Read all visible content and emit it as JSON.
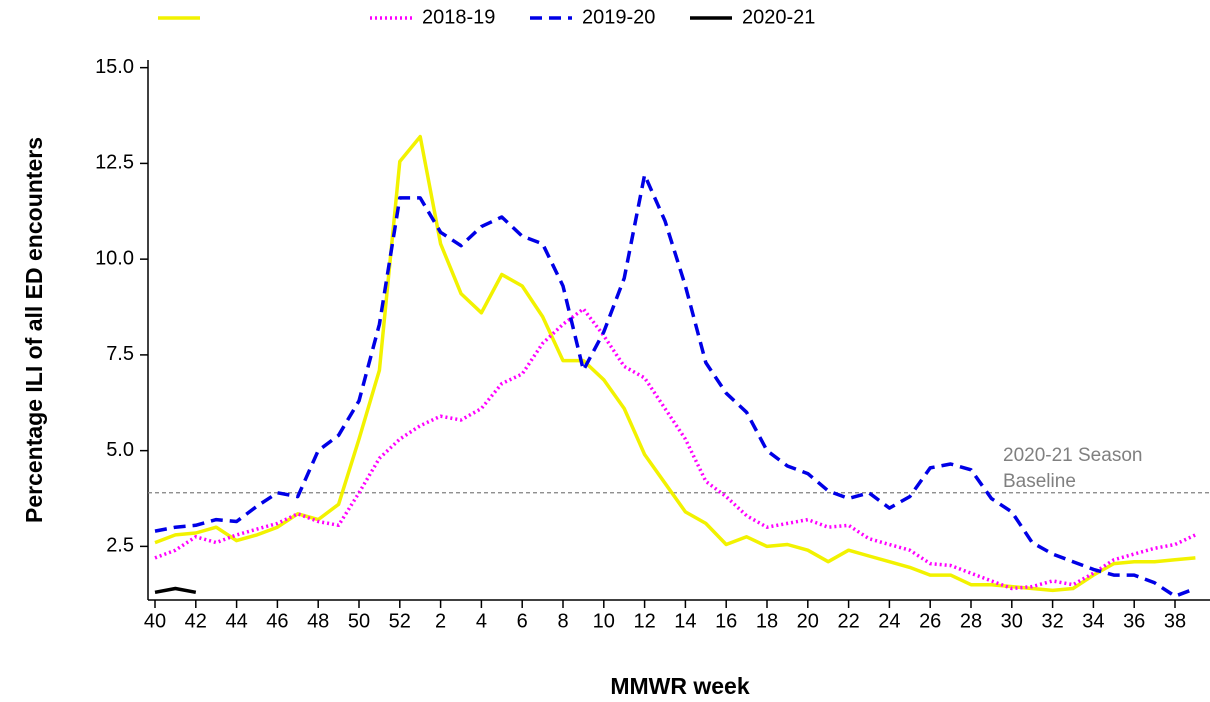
{
  "chart_data": {
    "type": "line",
    "y_label": "Percentage ILI of all ED encounters",
    "x_label": "MMWR week",
    "categories": [
      40,
      null,
      42,
      null,
      44,
      null,
      46,
      null,
      48,
      null,
      50,
      null,
      52,
      null,
      2,
      null,
      4,
      null,
      6,
      null,
      8,
      null,
      10,
      null,
      12,
      null,
      14,
      null,
      16,
      null,
      18,
      null,
      20,
      null,
      22,
      null,
      24,
      null,
      26,
      null,
      28,
      null,
      30,
      null,
      32,
      null,
      34,
      null,
      36,
      null,
      38,
      null
    ],
    "series": [
      {
        "color": "#f2f200",
        "style": "solid",
        "values": [
          2.6,
          2.8,
          2.85,
          3.0,
          2.65,
          2.8,
          3.0,
          3.35,
          3.2,
          3.6,
          5.3,
          7.1,
          12.55,
          13.2,
          10.4,
          9.1,
          8.6,
          9.6,
          9.3,
          8.5,
          7.35,
          7.35,
          6.85,
          6.1,
          4.9,
          4.15,
          3.4,
          3.1,
          2.55,
          2.75,
          2.5,
          2.55,
          2.4,
          2.1,
          2.4,
          2.25,
          2.1,
          1.95,
          1.75,
          1.75,
          1.5,
          1.5,
          1.45,
          1.4,
          1.35,
          1.4,
          1.75,
          2.05,
          2.1,
          2.1,
          2.15,
          2.2
        ]
      },
      {
        "name": "2018-19",
        "color": "#ff00ff",
        "style": "dotted",
        "values": [
          2.2,
          2.4,
          2.75,
          2.6,
          2.8,
          2.95,
          3.1,
          3.35,
          3.15,
          3.05,
          3.9,
          4.8,
          5.3,
          5.65,
          5.9,
          5.8,
          6.1,
          6.75,
          7.0,
          7.8,
          8.3,
          8.7,
          8.0,
          7.2,
          6.9,
          6.1,
          5.3,
          4.2,
          3.8,
          3.3,
          3.0,
          3.1,
          3.2,
          3.0,
          3.05,
          2.7,
          2.55,
          2.4,
          2.05,
          2.0,
          1.8,
          1.6,
          1.4,
          1.45,
          1.6,
          1.5,
          1.8,
          2.15,
          2.3,
          2.45,
          2.55,
          2.8
        ]
      },
      {
        "name": "2019-20",
        "color": "#0000e6",
        "style": "dashed",
        "values": [
          2.9,
          3.0,
          3.05,
          3.2,
          3.15,
          3.55,
          3.9,
          3.8,
          5.0,
          5.4,
          6.3,
          8.3,
          11.6,
          11.6,
          10.7,
          10.35,
          10.85,
          11.1,
          10.6,
          10.4,
          9.3,
          7.1,
          8.1,
          9.5,
          12.2,
          11.0,
          9.3,
          7.3,
          6.5,
          6.0,
          5.0,
          4.6,
          4.4,
          3.95,
          3.75,
          3.9,
          3.5,
          3.8,
          4.55,
          4.65,
          4.5,
          3.75,
          3.4,
          2.6,
          2.3,
          2.1,
          1.9,
          1.75,
          1.75,
          1.55,
          1.2,
          1.4
        ]
      },
      {
        "name": "2020-21",
        "color": "#000000",
        "style": "solid",
        "values": [
          1.3,
          1.4,
          1.3,
          null,
          null,
          null,
          null,
          null,
          null,
          null,
          null,
          null,
          null,
          null,
          null,
          null,
          null,
          null,
          null,
          null,
          null,
          null,
          null,
          null,
          null,
          null,
          null,
          null,
          null,
          null,
          null,
          null,
          null,
          null,
          null,
          null,
          null,
          null,
          null,
          null,
          null,
          null,
          null,
          null,
          null,
          null,
          null,
          null,
          null,
          null,
          null,
          null
        ]
      }
    ],
    "baseline": {
      "value": 3.9,
      "label": [
        "2020-21 Season",
        "Baseline"
      ],
      "color": "#808080"
    },
    "ylim": [
      1.1,
      15.2
    ],
    "yticks": [
      2.5,
      {
        "value": 5,
        "label": "5.0"
      },
      7.5,
      {
        "value": 10,
        "label": "10.0"
      },
      12.5,
      {
        "value": 15,
        "label": "15.0"
      }
    ]
  }
}
